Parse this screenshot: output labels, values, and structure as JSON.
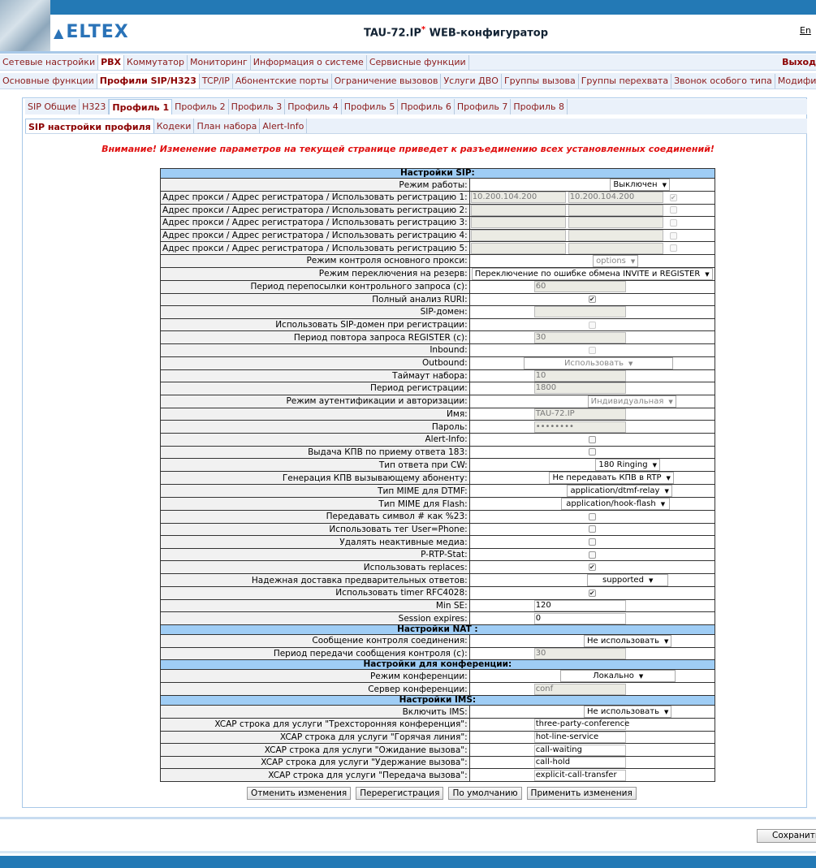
{
  "header": {
    "logo": "ELTEX",
    "title": "TAU-72.IP",
    "title_mark": "*",
    "title_suffix": " WEB-конфигуратор",
    "lang": "En"
  },
  "menu1": [
    "Сетевые настройки",
    "PBX",
    "Коммутатор",
    "Мониторинг",
    "Информация о системе",
    "Сервисные функции"
  ],
  "menu1_active": 1,
  "exit": "Выход",
  "menu2": [
    "Основные функции",
    "Профили SIP/H323",
    "TCP/IP",
    "Абонентские порты",
    "Ограничение вызовов",
    "Услуги ДВО",
    "Группы вызова",
    "Группы перехвата",
    "Звонок особого типа",
    "Модификаторы"
  ],
  "tabs": [
    "SIP Общие",
    "H323",
    "Профиль 1",
    "Профиль 2",
    "Профиль 3",
    "Профиль 4",
    "Профиль 5",
    "Профиль 6",
    "Профиль 7",
    "Профиль 8"
  ],
  "subtabs": [
    "SIP настройки профиля",
    "Кодеки",
    "План набора",
    "Alert-Info"
  ],
  "warning": "Внимание! Изменение параметров на текущей странице приведет к разъединению всех установленных соединений!",
  "sections": {
    "sip": "Настройки SIP:",
    "nat": "Настройки NAT :",
    "conf": "Настройки для конференции:",
    "ims": "Настройки IMS:"
  },
  "sip": {
    "mode": {
      "label": "Режим работы:",
      "value": "Выключен"
    },
    "proxies": [
      {
        "label": "Адрес прокси / Адрес регистратора / Использовать регистрацию 1:",
        "proxy": "10.200.104.200",
        "registrar": "10.200.104.200",
        "use": true
      },
      {
        "label": "Адрес прокси / Адрес регистратора / Использовать регистрацию 2:",
        "proxy": "",
        "registrar": "",
        "use": false
      },
      {
        "label": "Адрес прокси / Адрес регистратора / Использовать регистрацию 3:",
        "proxy": "",
        "registrar": "",
        "use": false
      },
      {
        "label": "Адрес прокси / Адрес регистратора / Использовать регистрацию 4:",
        "proxy": "",
        "registrar": "",
        "use": false
      },
      {
        "label": "Адрес прокси / Адрес регистратора / Использовать регистрацию 5:",
        "proxy": "",
        "registrar": "",
        "use": false
      }
    ],
    "proxy_ctrl": {
      "label": "Режим контроля основного прокси:",
      "value": "options"
    },
    "failover": {
      "label": "Режим переключения на резерв:",
      "value": "Переключение по ошибке обмена INVITE и REGISTER"
    },
    "keepalive": {
      "label": "Период перепосылки контрольного запроса (с):",
      "value": "60"
    },
    "ruri": {
      "label": "Полный анализ RURI:",
      "checked": true
    },
    "domain": {
      "label": "SIP-домен:",
      "value": ""
    },
    "domain_reg": {
      "label": "Использовать SIP-домен при регистрации:",
      "checked": false
    },
    "reg_retry": {
      "label": "Период повтора запроса REGISTER (с):",
      "value": "30"
    },
    "inbound": {
      "label": "Inbound:",
      "checked": false
    },
    "outbound": {
      "label": "Outbound:",
      "value": "Использовать"
    },
    "dial_timeout": {
      "label": "Таймаут набора:",
      "value": "10"
    },
    "reg_period": {
      "label": "Период регистрации:",
      "value": "1800"
    },
    "auth": {
      "label": "Режим аутентификации и авторизации:",
      "value": "Индивидуальная"
    },
    "name": {
      "label": "Имя:",
      "value": "TAU-72.IP"
    },
    "password": {
      "label": "Пароль:",
      "value": "••••••••"
    },
    "alert_info": {
      "label": "Alert-Info:",
      "checked": false
    },
    "kpv183": {
      "label": "Выдача КПВ по приему ответа 183:",
      "checked": false
    },
    "cw_type": {
      "label": "Тип ответа при CW:",
      "value": "180 Ringing"
    },
    "kpv_gen": {
      "label": "Генерация КПВ вызывающему абоненту:",
      "value": "Не передавать КПВ в RTP"
    },
    "mime_dtmf": {
      "label": "Тип MIME для DTMF:",
      "value": "application/dtmf-relay"
    },
    "mime_flash": {
      "label": "Тип MIME для Flash:",
      "value": "application/hook-flash"
    },
    "hash23": {
      "label": "Передавать символ # как %23:",
      "checked": false
    },
    "userphone": {
      "label": "Использовать тег User=Phone:",
      "checked": false
    },
    "del_media": {
      "label": "Удалять неактивные медиа:",
      "checked": false
    },
    "prtp": {
      "label": "P-RTP-Stat:",
      "checked": false
    },
    "replaces": {
      "label": "Использовать replaces:",
      "checked": true
    },
    "prack": {
      "label": "Надежная доставка предварительных ответов:",
      "value": "supported"
    },
    "timer": {
      "label": "Использовать timer RFC4028:",
      "checked": true
    },
    "minse": {
      "label": "Min SE:",
      "value": "120"
    },
    "sess": {
      "label": "Session expires:",
      "value": "0"
    }
  },
  "nat": {
    "msg": {
      "label": "Сообщение контроля соединения:",
      "value": "Не использовать"
    },
    "period": {
      "label": "Период передачи сообщения контроля (с):",
      "value": "30"
    }
  },
  "conf": {
    "mode": {
      "label": "Режим конференции:",
      "value": "Локально"
    },
    "server": {
      "label": "Сервер конференции:",
      "value": "conf"
    }
  },
  "ims": {
    "enable": {
      "label": "Включить IMS:",
      "value": "Не использовать"
    },
    "xcap": [
      {
        "label": "XCAP строка для услуги \"Трехсторонняя конференция\":",
        "value": "three-party-conference"
      },
      {
        "label": "XCAP строка для услуги \"Горячая линия\":",
        "value": "hot-line-service"
      },
      {
        "label": "XCAP строка для услуги \"Ожидание вызова\":",
        "value": "call-waiting"
      },
      {
        "label": "XCAP строка для услуги \"Удержание вызова\":",
        "value": "call-hold"
      },
      {
        "label": "XCAP строка для услуги \"Передача вызова\":",
        "value": "explicit-call-transfer"
      }
    ]
  },
  "buttons": {
    "cancel": "Отменить изменения",
    "rereg": "Перерегистрация",
    "default": "По умолчанию",
    "apply": "Применить изменения",
    "save": "Сохранить"
  }
}
